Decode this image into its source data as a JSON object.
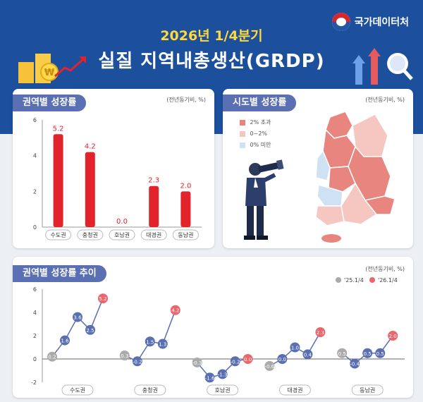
{
  "header": {
    "agency": "국가데이터처",
    "subtitle": "2026년 1/4분기",
    "title": "실질 지역내총생산(GRDP)"
  },
  "colors": {
    "header_bg": "#1c4f9c",
    "bar": "#e2232c",
    "series_2025": "#5a6fb2",
    "series_2026": "#e9666c",
    "map_high": "#e8857f",
    "map_mid": "#f6c7c1",
    "map_low": "#cfe2f3"
  },
  "panels": {
    "regional": {
      "label": "권역별 성장률",
      "unit": "(전년동기비, %)"
    },
    "provincial": {
      "label": "시도별 성장률",
      "unit": "(전년동기비, %)"
    },
    "trend": {
      "label": "권역별 성장률 추이",
      "unit": "(전년동기비, %)"
    }
  },
  "map_legend": [
    {
      "label": "2% 초과",
      "color": "#e8857f"
    },
    {
      "label": "0~2%",
      "color": "#f6c7c1"
    },
    {
      "label": "0% 미만",
      "color": "#cfe2f3"
    }
  ],
  "chart_data": [
    {
      "type": "bar",
      "title": "권역별 성장률",
      "unit": "(전년동기비, %)",
      "categories": [
        "수도권",
        "충청권",
        "호남권",
        "대경권",
        "동남권"
      ],
      "values": [
        5.2,
        4.2,
        0.0,
        2.3,
        2.0
      ],
      "ylim": [
        0,
        6
      ],
      "yticks": [
        0,
        2,
        4,
        6
      ],
      "grid": false
    },
    {
      "type": "line",
      "title": "권역별 성장률 추이",
      "unit": "(전년동기비, %)",
      "groups": [
        "수도권",
        "충청권",
        "호남권",
        "대경권",
        "동남권"
      ],
      "legend": [
        "'25.1/4",
        "'26.1/4"
      ],
      "legend_position": "top-right",
      "ylim": [
        -2,
        6
      ],
      "yticks": [
        -2,
        0,
        2,
        4,
        6
      ],
      "series": [
        {
          "region": "수도권",
          "values": [
            0.2,
            1.6,
            3.6,
            2.5,
            5.2
          ]
        },
        {
          "region": "충청권",
          "values": [
            0.3,
            -0.2,
            1.5,
            1.3,
            4.2
          ]
        },
        {
          "region": "호남권",
          "values": [
            -0.3,
            -1.6,
            -1.3,
            -0.2,
            0.0
          ]
        },
        {
          "region": "대경권",
          "values": [
            -0.6,
            0.0,
            1.0,
            0.4,
            2.3
          ]
        },
        {
          "region": "동남권",
          "values": [
            0.5,
            -0.4,
            0.5,
            0.5,
            2.0
          ]
        }
      ]
    }
  ]
}
